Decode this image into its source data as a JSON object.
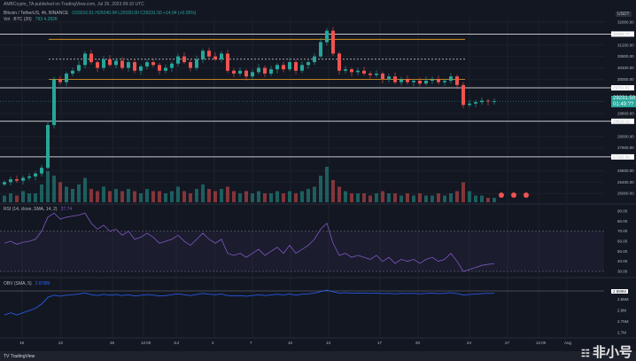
{
  "header": {
    "published": "AMBCrypto_TA published on TradingView.com, Jul 26, 2023 09:10 UTC",
    "symbol": "Bitcoin / TetherUS, 4h, BINANCE",
    "ohlc": "O29216.61 H29240.94 L29150.00 C29231.50 +14.94 (+0.05%)",
    "volume_label": "Vol · BTC (20)",
    "volume_value": "793 4.282K"
  },
  "footer": {
    "brand": "TradingView",
    "watermark": "非小号"
  },
  "colors": {
    "up": "#26a69a",
    "down": "#ef5350",
    "background": "#131722",
    "level": "#ffffff",
    "range": "#f0a020",
    "rsi": "#7e57c2",
    "obv": "#2962ff"
  },
  "chart_data": [
    {
      "type": "candlestick",
      "currency": "USDT",
      "y_ticks": [
        "32000.00",
        "31200.00",
        "30800.00",
        "30400.00",
        "30000.00",
        "28800.00",
        "28000.00",
        "27600.00",
        "26800.00",
        "26400.00",
        "26000.00"
      ],
      "ylim": [
        26000,
        32000
      ],
      "x_ticks": [
        "19",
        "22",
        "26",
        "12:00",
        "Jul",
        "4",
        "7",
        "10",
        "13",
        "17",
        "20",
        "24",
        "27",
        "12:00",
        "Aug"
      ],
      "levels": [
        "31583.77",
        "29701.02",
        "28529.12",
        "27282.89"
      ],
      "last_price": "29231.50",
      "countdown": "01:49:??",
      "range_lines": [
        31400,
        30000
      ],
      "mid_line": 30700,
      "closes": [
        26400,
        26500,
        26450,
        26550,
        26600,
        26700,
        26900,
        28400,
        30000,
        29900,
        30200,
        30300,
        30500,
        30900,
        30600,
        30400,
        30700,
        30500,
        30650,
        30400,
        30600,
        30300,
        30450,
        30600,
        30500,
        30300,
        30400,
        30550,
        30800,
        30600,
        30400,
        30700,
        31000,
        30800,
        30700,
        30900,
        30300,
        30200,
        30300,
        30100,
        30250,
        30400,
        30200,
        30350,
        30500,
        30350,
        30600,
        30300,
        30500,
        30600,
        30800,
        31300,
        31700,
        30900,
        30300,
        30350,
        30250,
        30300,
        30200,
        30150,
        30200,
        30000,
        30100,
        29900,
        30000,
        29900,
        29950,
        29850,
        29950,
        30000,
        29900,
        29950,
        30100,
        29800,
        29100,
        29150,
        29200,
        29250,
        29220,
        29231.5
      ],
      "volume": [
        3,
        4,
        3,
        5,
        4,
        4,
        8,
        14,
        12,
        9,
        7,
        6,
        8,
        11,
        6,
        5,
        7,
        5,
        6,
        5,
        6,
        5,
        4,
        6,
        5,
        5,
        4,
        5,
        7,
        5,
        4,
        6,
        8,
        6,
        5,
        6,
        7,
        5,
        4,
        5,
        4,
        5,
        4,
        4,
        5,
        4,
        5,
        4,
        5,
        6,
        7,
        12,
        16,
        10,
        7,
        5,
        4,
        4,
        4,
        3,
        4,
        5,
        4,
        4,
        3,
        4,
        3,
        4,
        3,
        3,
        4,
        3,
        4,
        5,
        9,
        5,
        3,
        3,
        2,
        2
      ]
    },
    {
      "type": "line",
      "title": "RSI (14, close, SMA, 14, 2)",
      "value": "37.74",
      "y_ticks": [
        "90.00",
        "80.00",
        "70.00",
        "60.00",
        "50.00",
        "40.00",
        "30.00"
      ],
      "ylim": [
        30,
        90
      ],
      "bands": [
        70,
        30
      ],
      "values": [
        58,
        60,
        57,
        59,
        60,
        62,
        70,
        84,
        88,
        82,
        84,
        85,
        86,
        88,
        78,
        72,
        76,
        70,
        72,
        66,
        70,
        62,
        64,
        68,
        64,
        58,
        60,
        62,
        66,
        60,
        56,
        62,
        68,
        62,
        58,
        62,
        48,
        46,
        48,
        44,
        48,
        52,
        46,
        50,
        54,
        48,
        56,
        48,
        52,
        56,
        62,
        72,
        78,
        58,
        46,
        48,
        44,
        46,
        44,
        42,
        46,
        40,
        44,
        38,
        42,
        40,
        42,
        38,
        42,
        44,
        40,
        42,
        48,
        40,
        30,
        32,
        34,
        36,
        37,
        37.74
      ]
    },
    {
      "type": "line",
      "title": "OBV (SMA, 5)",
      "value": "2.878M",
      "current_label": "2.889M",
      "y_ticks": [
        "2.85M",
        "2.8M",
        "2.75M",
        "2.7M"
      ],
      "ylim": [
        2.7,
        2.9
      ],
      "values": [
        2.78,
        2.79,
        2.78,
        2.79,
        2.8,
        2.81,
        2.83,
        2.86,
        2.87,
        2.865,
        2.87,
        2.872,
        2.875,
        2.88,
        2.872,
        2.868,
        2.874,
        2.87,
        2.873,
        2.868,
        2.872,
        2.866,
        2.869,
        2.873,
        2.87,
        2.866,
        2.868,
        2.872,
        2.876,
        2.872,
        2.868,
        2.873,
        2.878,
        2.874,
        2.872,
        2.875,
        2.868,
        2.866,
        2.868,
        2.865,
        2.868,
        2.872,
        2.868,
        2.871,
        2.874,
        2.871,
        2.875,
        2.87,
        2.874,
        2.876,
        2.879,
        2.886,
        2.893,
        2.885,
        2.879,
        2.881,
        2.879,
        2.88,
        2.879,
        2.878,
        2.879,
        2.877,
        2.878,
        2.876,
        2.878,
        2.877,
        2.878,
        2.876,
        2.878,
        2.879,
        2.877,
        2.878,
        2.881,
        2.877,
        2.871,
        2.873,
        2.875,
        2.877,
        2.878,
        2.878
      ]
    }
  ]
}
